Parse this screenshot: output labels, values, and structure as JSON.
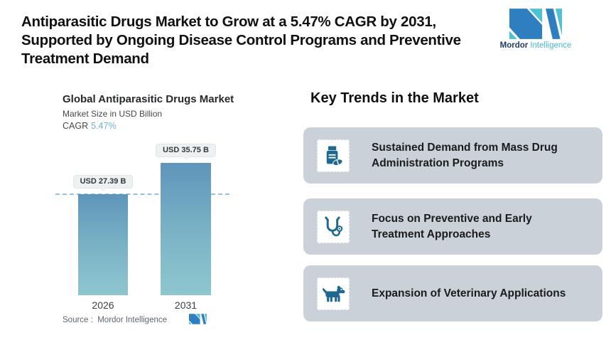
{
  "header": {
    "title_lines": [
      "Antiparasitic Drugs Market to Grow at a 5.47% CAGR by 2031,",
      "Supported by Ongoing Disease Control Programs and Preventive",
      "Treatment Demand"
    ],
    "brand": {
      "word_bold": "Mordor",
      "word_light": "Intelligence"
    }
  },
  "chart_data": {
    "type": "bar",
    "title": "Global Antiparasitic Drugs Market",
    "subtitle": "Market Size in USD Billion",
    "cagr_label": "CAGR",
    "cagr_value": "5.47%",
    "categories": [
      "2026",
      "2031"
    ],
    "values": [
      27.39,
      35.75
    ],
    "value_labels": [
      "USD 27.39 B",
      "USD 35.75 B"
    ],
    "ylabel": "Market Size in USD Billion",
    "ylim": [
      0,
      40
    ],
    "grid": "off",
    "reference_line_value": 27.39,
    "source": "Source :  Mordor Intelligence"
  },
  "trends": {
    "heading": "Key Trends in the Market",
    "items": [
      {
        "icon": "pill-bottle-icon",
        "lines": [
          "Sustained Demand from Mass Drug",
          "Administration Programs"
        ]
      },
      {
        "icon": "stethoscope-icon",
        "lines": [
          "Focus on Preventive and Early",
          "Treatment Approaches"
        ]
      },
      {
        "icon": "dog-icon",
        "lines": [
          "Expansion of Veterinary Applications"
        ]
      }
    ]
  },
  "colors": {
    "brand_teal": "#4cc2d4",
    "brand_blue": "#2e7fc0",
    "bar_gradient_top": "#5e95ba",
    "bar_gradient_bottom": "#8ec6cf",
    "cagr_accent": "#6fb0d6",
    "reference_line": "#97c0da",
    "card_background": "#cbd1d9",
    "icon_color": "#1f6890"
  }
}
